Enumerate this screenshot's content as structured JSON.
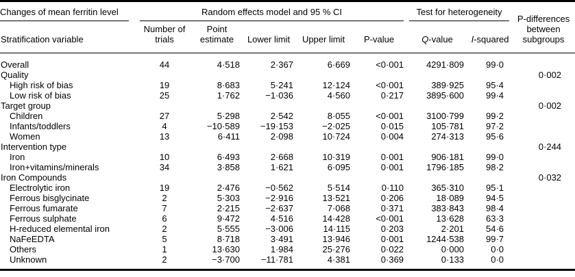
{
  "table": {
    "title": "Changes of mean ferritin level",
    "spanner_model": "Random effects model and 95 % CI",
    "spanner_heterogeneity": "Test for heterogeneity",
    "p_diff_header": "P-differences between subgroups",
    "columns": {
      "stratification": "Stratification variable",
      "trials": "Number of trials",
      "point": "Point estimate",
      "lower": "Lower limit",
      "upper": "Upper limit",
      "p": "P-value",
      "q": {
        "italic": "Q",
        "rest": "-value"
      },
      "i2": {
        "italic": "I",
        "rest": "-squared"
      }
    },
    "text_color": "#000000",
    "rule_color": "#000000",
    "rows": [
      {
        "label": "Overall",
        "indent": false,
        "cells": [
          "44",
          "4·518",
          "2·367",
          "6·669",
          "<0·001",
          "4291·809",
          "99·0",
          ""
        ]
      },
      {
        "label": "Quality",
        "indent": false,
        "cells": [
          "",
          "",
          "",
          "",
          "",
          "",
          "",
          "0·002"
        ]
      },
      {
        "label": "High risk of bias",
        "indent": true,
        "cells": [
          "19",
          "8·683",
          "5·241",
          "12·124",
          "<0·001",
          "389·925",
          "95·4",
          ""
        ]
      },
      {
        "label": "Low risk of bias",
        "indent": true,
        "cells": [
          "25",
          "1·762",
          "−1·036",
          "4·560",
          "0·217",
          "3895·600",
          "99·4",
          ""
        ]
      },
      {
        "label": "Target group",
        "indent": false,
        "cells": [
          "",
          "",
          "",
          "",
          "",
          "",
          "",
          "0·002"
        ]
      },
      {
        "label": "Children",
        "indent": true,
        "cells": [
          "27",
          "5·298",
          "2·542",
          "8·055",
          "<0·001",
          "3100·799",
          "99·2",
          ""
        ]
      },
      {
        "label": "Infants/toddlers",
        "indent": true,
        "cells": [
          "4",
          "−10·589",
          "−19·153",
          "−2·025",
          "0·015",
          "105·781",
          "97·2",
          ""
        ]
      },
      {
        "label": "Women",
        "indent": true,
        "cells": [
          "13",
          "6·411",
          "2·098",
          "10·724",
          "0·004",
          "274·313",
          "95·6",
          ""
        ]
      },
      {
        "label": "Intervention type",
        "indent": false,
        "cells": [
          "",
          "",
          "",
          "",
          "",
          "",
          "",
          "0·244"
        ]
      },
      {
        "label": "Iron",
        "indent": true,
        "cells": [
          "10",
          "6·493",
          "2·668",
          "10·319",
          "0·001",
          "906·181",
          "99·0",
          ""
        ]
      },
      {
        "label": "Iron+vitamins/minerals",
        "indent": true,
        "cells": [
          "34",
          "3·858",
          "1·621",
          "6·095",
          "0·001",
          "1796·185",
          "98·2",
          ""
        ]
      },
      {
        "label": "Iron Compounds",
        "indent": false,
        "cells": [
          "",
          "",
          "",
          "",
          "",
          "",
          "",
          "0·032"
        ]
      },
      {
        "label": "Electrolytic iron",
        "indent": true,
        "cells": [
          "19",
          "2·476",
          "−0·562",
          "5·514",
          "0·110",
          "365·310",
          "95·1",
          ""
        ]
      },
      {
        "label": "Ferrous bisglycinate",
        "indent": true,
        "cells": [
          "2",
          "5·303",
          "−2·916",
          "13·521",
          "0·206",
          "18·089",
          "94·5",
          ""
        ]
      },
      {
        "label": "Ferrous fumarate",
        "indent": true,
        "cells": [
          "7",
          "2·215",
          "−2·637",
          "7·068",
          "0·371",
          "383·843",
          "98·4",
          ""
        ]
      },
      {
        "label": "Ferrous sulphate",
        "indent": true,
        "cells": [
          "6",
          "9·472",
          "4·516",
          "14·428",
          "<0·001",
          "13·628",
          "63·3",
          ""
        ]
      },
      {
        "label": "H-reduced elemental iron",
        "indent": true,
        "cells": [
          "2",
          "5·555",
          "−3·006",
          "14·115",
          "0·203",
          "2·201",
          "54·6",
          ""
        ]
      },
      {
        "label": "NaFeEDTA",
        "indent": true,
        "cells": [
          "5",
          "8·718",
          "3·491",
          "13·946",
          "0·001",
          "1244·538",
          "99·7",
          ""
        ]
      },
      {
        "label": "Others",
        "indent": true,
        "cells": [
          "1",
          "13·630",
          "1·984",
          "25·276",
          "0·022",
          "0·000",
          "0·0",
          ""
        ]
      },
      {
        "label": "Unknown",
        "indent": true,
        "cells": [
          "2",
          "−3·700",
          "−11·781",
          "4·381",
          "0·369",
          "0·133",
          "0·0",
          ""
        ]
      }
    ]
  }
}
